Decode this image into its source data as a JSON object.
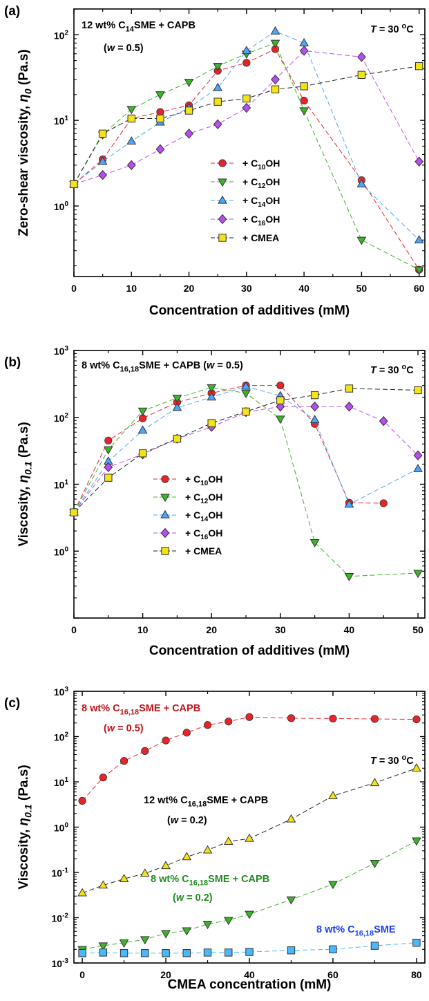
{
  "chart_data": [
    {
      "type": "line",
      "panel_label": "(a)",
      "annotations": [
        {
          "text": "12 wt% C14SME + CAPB"
        },
        {
          "text": "(w = 0.5)"
        },
        {
          "text": "T = 30 °C"
        }
      ],
      "xlabel": "Concentration of additives (mM)",
      "ylabel": "Zero-shear viscosity, η0 (Pa.s)",
      "xlim": [
        0,
        61
      ],
      "ylim": [
        0.15,
        200
      ],
      "yscale": "log",
      "xticks": [
        0,
        10,
        20,
        30,
        40,
        50,
        60
      ],
      "yticks": [
        1,
        10,
        100
      ],
      "ytick_labels": [
        "10^0",
        "10^1",
        "10^2"
      ],
      "legend_position": "center",
      "series": [
        {
          "name": "+ C10OH",
          "color": "#e8232a",
          "marker": "circle",
          "x": [
            0,
            5,
            10,
            15,
            20,
            25,
            30,
            35,
            40,
            50,
            60
          ],
          "y": [
            1.8,
            3.5,
            10.5,
            12.5,
            15,
            38,
            47,
            68,
            17,
            2.0,
            0.18
          ]
        },
        {
          "name": "+ C12OH",
          "color": "#3cb528",
          "marker": "triangle-down",
          "x": [
            0,
            5,
            10,
            15,
            20,
            25,
            30,
            35,
            40,
            50,
            60
          ],
          "y": [
            1.8,
            6.8,
            13.5,
            20,
            28,
            43,
            60,
            80,
            13,
            0.4,
            0.18
          ]
        },
        {
          "name": "+ C14OH",
          "color": "#4aa6ff",
          "marker": "triangle-up",
          "x": [
            0,
            5,
            10,
            15,
            20,
            25,
            30,
            35,
            40,
            50,
            60
          ],
          "y": [
            1.8,
            3.3,
            5.7,
            9.5,
            14,
            24,
            65,
            110,
            80,
            1.8,
            0.4
          ]
        },
        {
          "name": "+ C16OH",
          "color": "#b94cf2",
          "marker": "diamond",
          "x": [
            0,
            5,
            10,
            15,
            20,
            25,
            30,
            35,
            40,
            50,
            60
          ],
          "y": [
            1.8,
            2.3,
            3.0,
            4.6,
            7.0,
            9.0,
            14,
            30,
            65,
            55,
            3.3
          ]
        },
        {
          "name": "+ CMEA",
          "color": "#f3e317",
          "marker": "square",
          "x": [
            0,
            5,
            10,
            15,
            20,
            25,
            30,
            35,
            40,
            50,
            60
          ],
          "y": [
            1.8,
            7.0,
            10.5,
            10.5,
            13,
            16.5,
            18,
            23,
            25,
            34,
            43
          ]
        }
      ]
    },
    {
      "type": "line",
      "panel_label": "(b)",
      "annotations": [
        {
          "text": "8 wt% C16,18SME + CAPB (w = 0.5)"
        },
        {
          "text": "T = 30 °C"
        }
      ],
      "xlabel": "Concentration of additives (mM)",
      "ylabel": "Viscosity, η0.1 (Pa.s)",
      "xlim": [
        0,
        51
      ],
      "ylim": [
        0.1,
        1000
      ],
      "yscale": "log",
      "xticks": [
        0,
        10,
        20,
        30,
        40,
        50
      ],
      "yticks": [
        1,
        10,
        100,
        1000
      ],
      "ytick_labels": [
        "10^0",
        "10^1",
        "10^2",
        "10^3"
      ],
      "legend_position": "lower-left",
      "series": [
        {
          "name": "+ C10OH",
          "color": "#e8232a",
          "marker": "circle",
          "x": [
            0,
            5,
            10,
            15,
            20,
            25,
            30,
            35,
            40,
            45
          ],
          "y": [
            3.8,
            45,
            97,
            168,
            230,
            300,
            300,
            80,
            5.3,
            5.2
          ]
        },
        {
          "name": "+ C12OH",
          "color": "#3cb528",
          "marker": "triangle-down",
          "x": [
            0,
            5,
            10,
            15,
            20,
            25,
            30,
            35,
            40,
            50
          ],
          "y": [
            3.8,
            33,
            125,
            195,
            280,
            230,
            95,
            1.35,
            0.42,
            0.47
          ]
        },
        {
          "name": "+ C14OH",
          "color": "#4aa6ff",
          "marker": "triangle-up",
          "x": [
            0,
            5,
            10,
            15,
            20,
            25,
            30,
            35,
            40,
            50
          ],
          "y": [
            3.8,
            22,
            64,
            140,
            200,
            290,
            210,
            92,
            5.0,
            17
          ]
        },
        {
          "name": "+ C16OH",
          "color": "#b94cf2",
          "marker": "diamond",
          "x": [
            0,
            5,
            10,
            15,
            20,
            25,
            30,
            35,
            40,
            45,
            50
          ],
          "y": [
            3.8,
            18,
            28,
            48,
            72,
            120,
            145,
            145,
            145,
            88,
            27
          ]
        },
        {
          "name": "+ CMEA",
          "color": "#f3e317",
          "marker": "square",
          "x": [
            0,
            5,
            10,
            15,
            20,
            25,
            30,
            35,
            40,
            50
          ],
          "y": [
            3.8,
            12.5,
            29,
            48,
            82,
            122,
            180,
            215,
            270,
            255
          ]
        }
      ]
    },
    {
      "type": "line",
      "panel_label": "(c)",
      "annotations": [
        {
          "text": "T = 30 °C"
        }
      ],
      "xlabel": "CMEA concentration (mM)",
      "ylabel": "Viscosity, η0.1 (Pa.s)",
      "xlim": [
        -2,
        82
      ],
      "ylim": [
        0.001,
        1000
      ],
      "yscale": "log",
      "xticks": [
        0,
        20,
        40,
        60,
        80
      ],
      "yticks": [
        0.001,
        0.01,
        0.1,
        1,
        10,
        100,
        1000
      ],
      "ytick_labels": [
        "10^-3",
        "10^-2",
        "10^-1",
        "10^0",
        "10^1",
        "10^2",
        "10^3"
      ],
      "series": [
        {
          "name": "8 wt% C16,18SME + CAPB",
          "name_line2": "(w = 0.5)",
          "color": "#e8232a",
          "label_color": "#c0141b",
          "marker": "circle",
          "x": [
            0,
            5,
            10,
            15,
            20,
            25,
            30,
            35,
            40,
            50,
            60,
            70,
            80
          ],
          "y": [
            3.8,
            12.5,
            29,
            48,
            82,
            122,
            180,
            215,
            270,
            255,
            250,
            245,
            240
          ]
        },
        {
          "name": "12 wt% C16,18SME + CAPB",
          "name_line2": "(w = 0.2)",
          "color": "#f3e317",
          "label_color": "#000000",
          "marker": "triangle-up",
          "x": [
            0,
            5,
            10,
            15,
            20,
            25,
            30,
            35,
            40,
            50,
            60,
            70,
            80
          ],
          "y": [
            0.035,
            0.052,
            0.072,
            0.095,
            0.14,
            0.22,
            0.31,
            0.48,
            0.56,
            1.5,
            4.9,
            9.5,
            20
          ]
        },
        {
          "name": "8 wt% C16,18SME + CAPB",
          "name_line2": "(w = 0.2)",
          "color": "#3cb528",
          "label_color": "#1f8a1f",
          "marker": "triangle-down",
          "x": [
            0,
            5,
            10,
            15,
            20,
            25,
            30,
            35,
            40,
            50,
            60,
            70,
            80
          ],
          "y": [
            0.002,
            0.0024,
            0.0028,
            0.0033,
            0.0045,
            0.0052,
            0.0072,
            0.0088,
            0.012,
            0.025,
            0.055,
            0.16,
            0.5
          ]
        },
        {
          "name": "8 wt% C16,18SME",
          "name_line2": "",
          "color": "#4ab8ff",
          "label_color": "#1a3cff",
          "marker": "square",
          "x": [
            0,
            5,
            10,
            15,
            20,
            25,
            30,
            35,
            40,
            50,
            60,
            70,
            80
          ],
          "y": [
            0.00165,
            0.0017,
            0.00165,
            0.00165,
            0.00165,
            0.00165,
            0.0017,
            0.0017,
            0.00175,
            0.0019,
            0.002,
            0.0024,
            0.0028
          ]
        }
      ]
    }
  ]
}
